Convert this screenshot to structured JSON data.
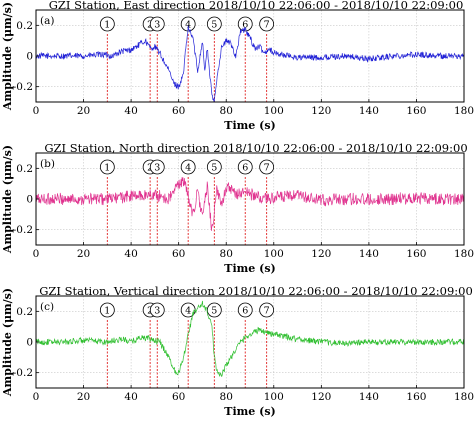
{
  "chart_data": [
    {
      "type": "line",
      "panel_label": "(a)",
      "title": "GZI Station, East direction  2018/10/10 22:06:00 - 2018/10/10 22:09:00",
      "xlabel": "Time (s)",
      "ylabel": "Amplitude (μm/s)",
      "xlim": [
        0,
        180
      ],
      "ylim": [
        -0.3,
        0.3
      ],
      "x_ticks": [
        "0",
        "20",
        "40",
        "60",
        "80",
        "100",
        "120",
        "140",
        "160",
        "180"
      ],
      "y_ticks": [
        "-0.2",
        "0",
        "0.2"
      ],
      "grid": true,
      "color": "#1f1fd6",
      "events": [
        {
          "label": "1",
          "t": 30
        },
        {
          "label": "2",
          "t": 48
        },
        {
          "label": "3",
          "t": 51
        },
        {
          "label": "4",
          "t": 64
        },
        {
          "label": "5",
          "t": 75
        },
        {
          "label": "6",
          "t": 88
        },
        {
          "label": "7",
          "t": 97
        }
      ],
      "series": [
        {
          "x": [
            0,
            10,
            20,
            28,
            32,
            36,
            40,
            44,
            46,
            48,
            50,
            52,
            54,
            56,
            58,
            60,
            62,
            63,
            64,
            66,
            68,
            70,
            71,
            72,
            74,
            75,
            76,
            78,
            80,
            82,
            84,
            86,
            88,
            90,
            92,
            94,
            96,
            98,
            100,
            110,
            120,
            130,
            140,
            150,
            160,
            170,
            180
          ],
          "y": [
            0.0,
            0.0,
            0.0,
            0.01,
            0.0,
            0.03,
            0.04,
            0.08,
            0.1,
            0.05,
            0.06,
            0.02,
            -0.04,
            -0.1,
            -0.18,
            -0.2,
            -0.12,
            0.05,
            0.18,
            0.12,
            -0.1,
            0.1,
            -0.1,
            0.05,
            -0.26,
            -0.3,
            -0.15,
            0.05,
            0.1,
            0.08,
            0.0,
            0.16,
            0.17,
            0.12,
            0.05,
            0.06,
            0.02,
            0.05,
            0.02,
            -0.01,
            -0.01,
            0.0,
            -0.02,
            0.0,
            0.01,
            0.0,
            0.0
          ],
          "noise": 0.02
        }
      ]
    },
    {
      "type": "line",
      "panel_label": "(b)",
      "title": "GZI Station, North direction  2018/10/10 22:06:00 - 2018/10/10 22:09:00",
      "xlabel": "Time (s)",
      "ylabel": "Amplitude (μm/s)",
      "xlim": [
        0,
        180
      ],
      "ylim": [
        -0.3,
        0.3
      ],
      "x_ticks": [
        "0",
        "20",
        "40",
        "60",
        "80",
        "100",
        "120",
        "140",
        "160",
        "180"
      ],
      "y_ticks": [
        "-0.2",
        "0",
        "0.2"
      ],
      "grid": true,
      "color": "#e0338f",
      "events": [
        {
          "label": "1",
          "t": 30
        },
        {
          "label": "2",
          "t": 48
        },
        {
          "label": "3",
          "t": 51
        },
        {
          "label": "4",
          "t": 64
        },
        {
          "label": "5",
          "t": 75
        },
        {
          "label": "6",
          "t": 88
        },
        {
          "label": "7",
          "t": 97
        }
      ],
      "series": [
        {
          "x": [
            0,
            10,
            20,
            30,
            36,
            40,
            44,
            48,
            52,
            56,
            58,
            60,
            62,
            64,
            66,
            68,
            70,
            72,
            74,
            76,
            78,
            80,
            84,
            88,
            92,
            96,
            100,
            110,
            120,
            130,
            140,
            150,
            160,
            170,
            180
          ],
          "y": [
            0.0,
            0.0,
            0.0,
            0.0,
            0.01,
            0.02,
            0.02,
            0.03,
            0.02,
            0.0,
            0.05,
            0.1,
            0.12,
            0.02,
            -0.1,
            0.05,
            -0.12,
            0.08,
            -0.2,
            0.05,
            -0.03,
            0.08,
            0.03,
            0.05,
            0.02,
            0.0,
            0.01,
            0.02,
            -0.01,
            0.0,
            0.0,
            0.0,
            0.01,
            0.0,
            0.0
          ],
          "noise": 0.04
        }
      ]
    },
    {
      "type": "line",
      "panel_label": "(c)",
      "title": "GZI Station, Vertical direction  2018/10/10 22:06:00 - 2018/10/10 22:09:00",
      "xlabel": "Time (s)",
      "ylabel": "Amplitude (μm/s)",
      "xlim": [
        0,
        180
      ],
      "ylim": [
        -0.3,
        0.3
      ],
      "x_ticks": [
        "0",
        "20",
        "40",
        "60",
        "80",
        "100",
        "120",
        "140",
        "160",
        "180"
      ],
      "y_ticks": [
        "-0.2",
        "0",
        "0.2"
      ],
      "grid": true,
      "color": "#2fbf2f",
      "events": [
        {
          "label": "1",
          "t": 30
        },
        {
          "label": "2",
          "t": 48
        },
        {
          "label": "3",
          "t": 51
        },
        {
          "label": "4",
          "t": 64
        },
        {
          "label": "5",
          "t": 75
        },
        {
          "label": "6",
          "t": 88
        },
        {
          "label": "7",
          "t": 97
        }
      ],
      "series": [
        {
          "x": [
            0,
            10,
            20,
            30,
            36,
            40,
            44,
            48,
            52,
            56,
            58,
            60,
            62,
            64,
            66,
            68,
            70,
            72,
            74,
            75,
            76,
            78,
            80,
            82,
            84,
            86,
            88,
            90,
            94,
            98,
            100,
            110,
            120,
            130,
            140,
            150,
            160,
            170,
            180
          ],
          "y": [
            0.0,
            0.0,
            0.01,
            0.0,
            0.02,
            0.0,
            0.03,
            0.02,
            0.0,
            -0.1,
            -0.18,
            -0.2,
            -0.1,
            0.05,
            0.18,
            0.22,
            0.25,
            0.2,
            0.1,
            -0.1,
            -0.18,
            -0.22,
            -0.15,
            -0.1,
            -0.05,
            0.0,
            0.03,
            0.05,
            0.08,
            0.06,
            0.05,
            0.02,
            0.0,
            -0.01,
            0.0,
            0.0,
            0.0,
            0.0,
            0.0
          ],
          "noise": 0.02
        }
      ]
    }
  ]
}
